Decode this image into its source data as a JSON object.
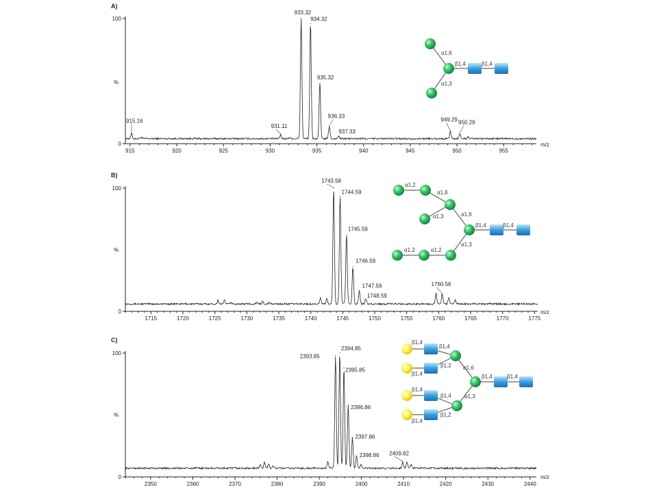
{
  "chart_data": [
    {
      "type": "line",
      "panel": "A)",
      "xlabel": "m/z",
      "ylabel": "%",
      "xlim": [
        914.5,
        958.5
      ],
      "ylim": [
        0,
        100
      ],
      "xticks": [
        915,
        920,
        925,
        930,
        935,
        940,
        945,
        950,
        955
      ],
      "yticks": [
        0,
        100
      ],
      "baseline": 4,
      "peaks": [
        {
          "x": 915.16,
          "y": 8,
          "label": "915.16"
        },
        {
          "x": 916.2,
          "y": 5
        },
        {
          "x": 931.11,
          "y": 7,
          "label": "931.11"
        },
        {
          "x": 932.1,
          "y": 5
        },
        {
          "x": 933.32,
          "y": 100,
          "label": "933.32"
        },
        {
          "x": 934.32,
          "y": 96,
          "label": "934.32"
        },
        {
          "x": 935.32,
          "y": 48,
          "label": "935.32"
        },
        {
          "x": 936.33,
          "y": 14,
          "label": "936.33"
        },
        {
          "x": 937.33,
          "y": 6,
          "label": "937.33"
        },
        {
          "x": 949.29,
          "y": 10,
          "label": "949.29"
        },
        {
          "x": 950.29,
          "y": 8,
          "label": "950.29"
        },
        {
          "x": 951.2,
          "y": 5
        }
      ],
      "glycan_links": [
        "α1,6",
        "α1,3",
        "β1,4",
        "β1,4"
      ]
    },
    {
      "type": "line",
      "panel": "B)",
      "xlabel": "m/z",
      "ylabel": "%",
      "xlim": [
        1711,
        1775.5
      ],
      "ylim": [
        0,
        100
      ],
      "xticks": [
        1715,
        1720,
        1725,
        1730,
        1735,
        1740,
        1745,
        1750,
        1755,
        1760,
        1765,
        1770,
        1775
      ],
      "yticks": [
        0,
        100
      ],
      "baseline": 6,
      "peaks": [
        {
          "x": 1725.5,
          "y": 9
        },
        {
          "x": 1726.5,
          "y": 9
        },
        {
          "x": 1727.5,
          "y": 7
        },
        {
          "x": 1731.5,
          "y": 7
        },
        {
          "x": 1732.5,
          "y": 8
        },
        {
          "x": 1733.5,
          "y": 7
        },
        {
          "x": 1741.5,
          "y": 11
        },
        {
          "x": 1742.5,
          "y": 10
        },
        {
          "x": 1743.58,
          "y": 100,
          "label": "1743.58"
        },
        {
          "x": 1744.59,
          "y": 93,
          "label": "1744.59"
        },
        {
          "x": 1745.59,
          "y": 62,
          "label": "1745.59"
        },
        {
          "x": 1746.59,
          "y": 36,
          "label": "1746.59"
        },
        {
          "x": 1747.59,
          "y": 17,
          "label": "1747.59"
        },
        {
          "x": 1748.59,
          "y": 10,
          "label": "1748.59"
        },
        {
          "x": 1759.6,
          "y": 14
        },
        {
          "x": 1760.56,
          "y": 14,
          "label": "1760.56"
        },
        {
          "x": 1761.6,
          "y": 11
        },
        {
          "x": 1762.6,
          "y": 9
        }
      ],
      "glycan_links": [
        "α1,2",
        "α1,6",
        "α1,3",
        "α1,6",
        "β1,4",
        "β1,4",
        "α1,2",
        "α1,2",
        "α1,3"
      ]
    },
    {
      "type": "line",
      "panel": "C)",
      "xlabel": "m/z",
      "ylabel": "%",
      "xlim": [
        2344,
        2441.5
      ],
      "ylim": [
        0,
        100
      ],
      "xticks": [
        2350,
        2360,
        2370,
        2380,
        2390,
        2400,
        2410,
        2420,
        2430,
        2440
      ],
      "yticks": [
        0,
        100
      ],
      "baseline": 7,
      "peaks": [
        {
          "x": 2376,
          "y": 10
        },
        {
          "x": 2377,
          "y": 12
        },
        {
          "x": 2378,
          "y": 10
        },
        {
          "x": 2379,
          "y": 9
        },
        {
          "x": 2392,
          "y": 12
        },
        {
          "x": 2393.85,
          "y": 98,
          "label": "2393.85"
        },
        {
          "x": 2394.85,
          "y": 100,
          "label": "2394.85"
        },
        {
          "x": 2395.85,
          "y": 88,
          "label": "2395.85"
        },
        {
          "x": 2396.86,
          "y": 58,
          "label": "2396.86"
        },
        {
          "x": 2397.86,
          "y": 32,
          "label": "2397.86"
        },
        {
          "x": 2398.86,
          "y": 17,
          "label": "2398.86"
        },
        {
          "x": 2399.9,
          "y": 10
        },
        {
          "x": 2409.82,
          "y": 12,
          "label": "2409.82"
        },
        {
          "x": 2410.8,
          "y": 12
        },
        {
          "x": 2411.8,
          "y": 10
        }
      ],
      "glycan_links": [
        "β1,4",
        "β1,4",
        "β1,4",
        "β1,2",
        "α1,6",
        "β1,4",
        "β1,4",
        "β1,4",
        "β1,4",
        "α1,3",
        "β1,4",
        "β1,2"
      ]
    }
  ],
  "colors": {
    "mannose_green": "#1fae4f",
    "glcnac_blue": "#2f95d6",
    "galactose_yellow": "#f2e400",
    "line": "#222222"
  }
}
